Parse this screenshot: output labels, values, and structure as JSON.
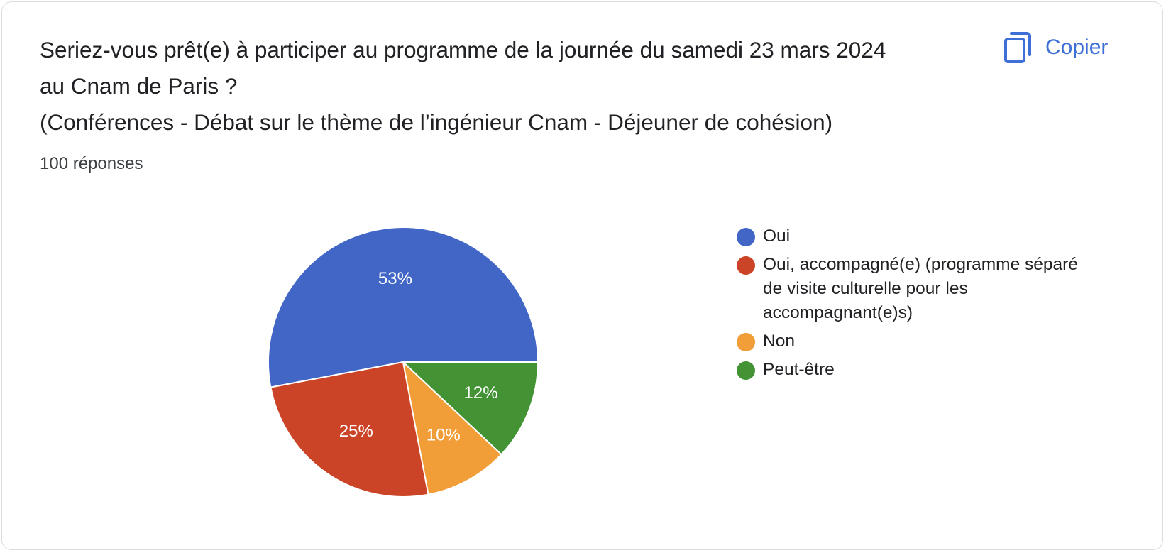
{
  "question": {
    "title_lines": [
      "Seriez-vous prêt(e) à participer au programme de la journée du samedi 23 mars 2024",
      "au Cnam de Paris ?",
      "(Conférences - Débat sur le thème de l’ingénieur Cnam - Déjeuner de cohésion)"
    ],
    "responses_label": "100 réponses"
  },
  "actions": {
    "copy_label": "Copier",
    "copy_icon": "copy-icon"
  },
  "chart_data": {
    "type": "pie",
    "title": "Seriez-vous prêt(e) à participer au programme de la journée du samedi 23 mars 2024 au Cnam de Paris ? (Conférences - Débat sur le thème de l’ingénieur Cnam - Déjeuner de cohésion)",
    "total_responses": 100,
    "start": "3 o'clock, counter-clockwise",
    "legend_position": "right",
    "slices": [
      {
        "name": "Oui",
        "value": 53,
        "label": "53%",
        "color": "#4166c6"
      },
      {
        "name": "Oui, accompagné(e) (programme séparé de visite culturelle pour les accompagnant(e)s)",
        "value": 25,
        "label": "25%",
        "color": "#cc4427"
      },
      {
        "name": "Non",
        "value": 10,
        "label": "10%",
        "color": "#f19d38"
      },
      {
        "name": "Peut-être",
        "value": 12,
        "label": "12%",
        "color": "#439334"
      }
    ],
    "legend_lines": [
      [
        "Oui"
      ],
      [
        "Oui, accompagné(e) (programme séparé",
        "de visite culturelle pour les",
        "accompagnant(e)s)"
      ],
      [
        "Non"
      ],
      [
        "Peut-être"
      ]
    ]
  }
}
